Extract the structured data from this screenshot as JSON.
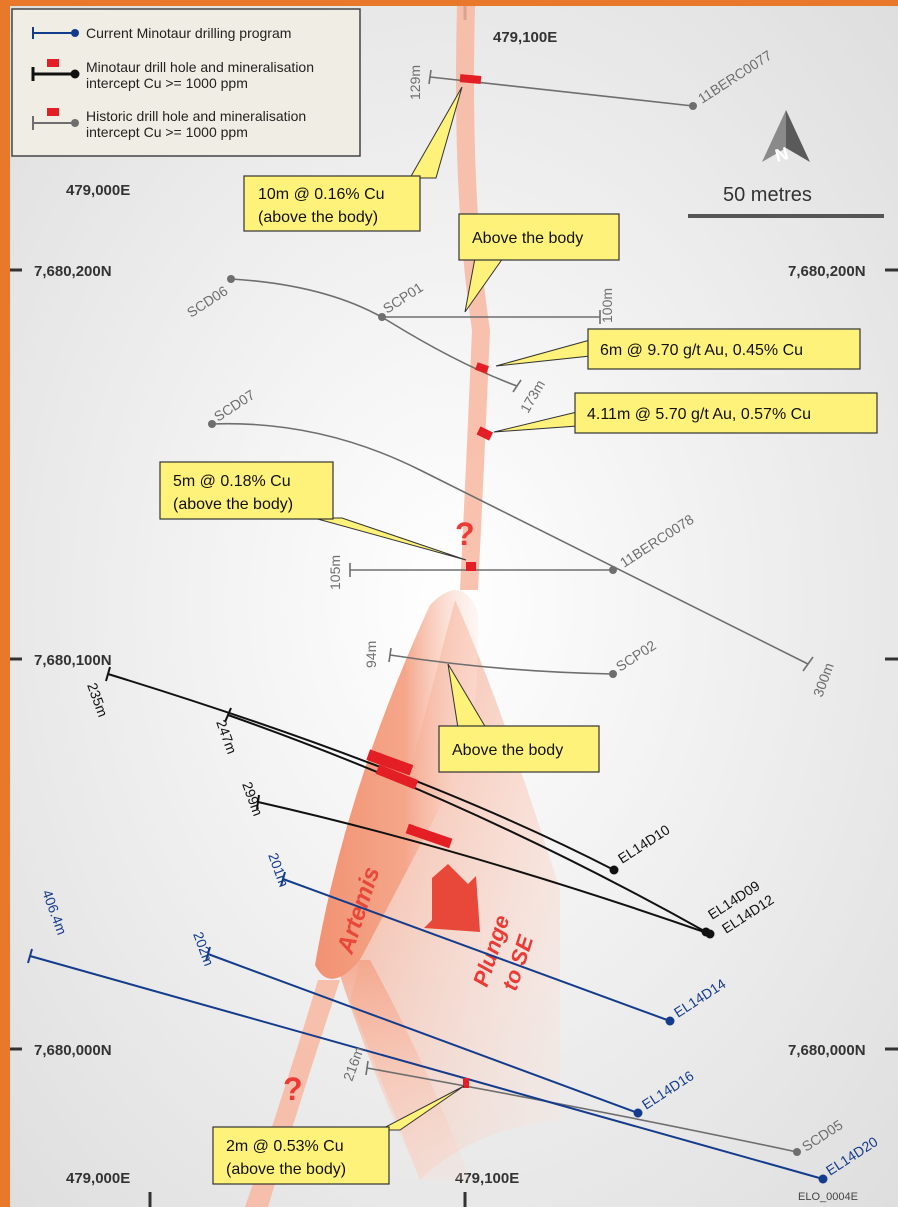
{
  "legend": {
    "current_program": "Current Minotaur drilling program",
    "minotaur_hole": "Minotaur drill hole and mineralisation",
    "minotaur_hole_line2": "intercept Cu >= 1000 ppm",
    "historic_hole": "Historic drill hole and mineralisation",
    "historic_hole_line2": "intercept Cu >= 1000 ppm"
  },
  "grid": {
    "e_479100": "479,100E",
    "e_479000": "479,000E",
    "n_7680200": "7,680,200N",
    "n_7680100": "7,680,100N",
    "n_7680000": "7,680,000N"
  },
  "scale_bar": {
    "label": "50 metres"
  },
  "north_arrow": {
    "label": "N"
  },
  "orebody": {
    "name": "Artemis",
    "plunge_line1": "Plunge",
    "plunge_line2": "to SE",
    "unknown": "?"
  },
  "callouts": {
    "c1_line1": "10m @ 0.16% Cu",
    "c1_line2": "(above the body)",
    "c2": "Above the body",
    "c3": "6m @ 9.70 g/t Au, 0.45% Cu",
    "c4": "4.11m @ 5.70 g/t Au, 0.57% Cu",
    "c5_line1": "5m @ 0.18% Cu",
    "c5_line2": "(above the body)",
    "c6": "Above the body",
    "c7_line1": "2m @ 0.53% Cu",
    "c7_line2": "(above the body)"
  },
  "historic_holes": {
    "h1": {
      "name": "11BERC0077",
      "depth": "129m"
    },
    "h2": {
      "name": "SCD06",
      "depth": "173m"
    },
    "h3": {
      "name": "SCP01",
      "depth": "100m"
    },
    "h4": {
      "name": "SCD07",
      "depth": "300m"
    },
    "h5": {
      "name": "11BERC0078",
      "depth": "105m"
    },
    "h6": {
      "name": "SCP02",
      "depth": "94m"
    },
    "h7": {
      "name": "SCD05",
      "depth": "216m"
    }
  },
  "minotaur_holes": {
    "m1": {
      "name": "EL14D10",
      "depth": "235m"
    },
    "m2": {
      "name": "EL14D09",
      "depth": "247m"
    },
    "m3": {
      "name": "EL14D12",
      "depth": "299m"
    }
  },
  "current_holes": {
    "c1": {
      "name": "EL14D14",
      "depth": "201m"
    },
    "c2": {
      "name": "EL14D16",
      "depth": "202m"
    },
    "c3": {
      "name": "EL14D20",
      "depth": "406.4m"
    }
  },
  "figure_id": "ELO_0004E",
  "colors": {
    "frame": "#e8792a",
    "historic": "#6e6e6e",
    "minotaur": "#111111",
    "current": "#143c8c",
    "intercept": "#e31e24",
    "callout": "#fff27a",
    "legend_bg": "#f0eee4"
  }
}
